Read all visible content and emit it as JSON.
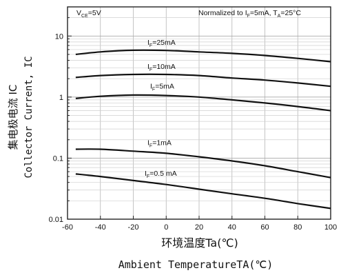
{
  "chart_data": {
    "type": "line",
    "x_axis": {
      "min": -60,
      "max": 100,
      "ticks": [
        -60,
        -40,
        -20,
        0,
        20,
        40,
        60,
        80,
        100
      ],
      "tick_labels": [
        "-60",
        "-40",
        "-20",
        "0",
        "20",
        "40",
        "60",
        "80",
        "100"
      ],
      "label_cn": "环境温度Ta(℃)",
      "label_en": "Ambient TemperatureTA(℃)"
    },
    "y_axis": {
      "scale": "log",
      "min": 0.01,
      "max": 30,
      "ticks": [
        0.01,
        0.1,
        1,
        10
      ],
      "tick_labels": [
        "0.01",
        "0.1",
        "1",
        "10"
      ],
      "label_cn": "集电极电流 IC",
      "label_en": "Collector Current, IC"
    },
    "grid": true,
    "annotations": {
      "condition": {
        "main": "V",
        "sub": "CE",
        "rest": "=5V"
      },
      "normalization": {
        "text1": "Normalized to I",
        "sub1": "F",
        "text2": "=5mA, T",
        "sub2": "A",
        "text3": "=25°C"
      }
    },
    "series": [
      {
        "label_prefix": "I",
        "label_sub": "F",
        "label_rest": "=25mA",
        "x": [
          -55,
          -40,
          -20,
          0,
          20,
          40,
          60,
          80,
          100
        ],
        "y": [
          5.0,
          5.5,
          5.85,
          5.8,
          5.5,
          5.2,
          4.8,
          4.3,
          3.8
        ]
      },
      {
        "label_prefix": "I",
        "label_sub": "F",
        "label_rest": "=10mA",
        "x": [
          -55,
          -40,
          -20,
          0,
          20,
          40,
          60,
          80,
          100
        ],
        "y": [
          2.1,
          2.25,
          2.35,
          2.35,
          2.25,
          2.05,
          1.9,
          1.7,
          1.5
        ]
      },
      {
        "label_prefix": "I",
        "label_sub": "F",
        "label_rest": "=5mA",
        "x": [
          -55,
          -40,
          -20,
          0,
          20,
          40,
          60,
          80,
          100
        ],
        "y": [
          0.95,
          1.03,
          1.08,
          1.06,
          1.0,
          0.9,
          0.8,
          0.7,
          0.6
        ]
      },
      {
        "label_prefix": "I",
        "label_sub": "F",
        "label_rest": "=1mA",
        "x": [
          -55,
          -40,
          -20,
          0,
          20,
          40,
          60,
          80,
          100
        ],
        "y": [
          0.14,
          0.14,
          0.13,
          0.12,
          0.105,
          0.09,
          0.075,
          0.06,
          0.048
        ]
      },
      {
        "label_prefix": "I",
        "label_sub": "F",
        "label_rest": "=0.5 mA",
        "x": [
          -55,
          -40,
          -20,
          0,
          20,
          40,
          60,
          80,
          100
        ],
        "y": [
          0.055,
          0.05,
          0.043,
          0.037,
          0.031,
          0.026,
          0.022,
          0.018,
          0.015
        ]
      }
    ]
  }
}
